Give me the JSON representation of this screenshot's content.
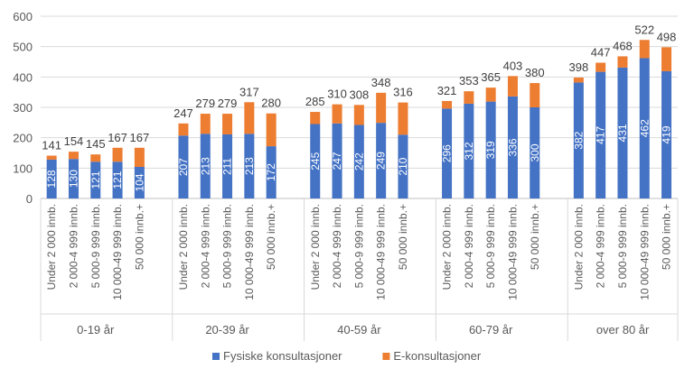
{
  "chart_data": {
    "type": "bar",
    "stacked": true,
    "ylim": [
      0,
      600
    ],
    "yticks": [
      0,
      100,
      200,
      300,
      400,
      500,
      600
    ],
    "grid": true,
    "legend_position": "bottom",
    "groups": [
      "0-19 år",
      "20-39 år",
      "40-59 år",
      "60-79 år",
      "over 80 år"
    ],
    "categories": [
      "Under 2 000 innb.",
      "2 000-4 999 innb.",
      "5 000-9 999 innb.",
      "10 000-49 999 innb.",
      "50 000 innb.+"
    ],
    "series": [
      {
        "name": "Fysiske konsultasjoner",
        "color": "#4472C4",
        "values": [
          [
            128,
            130,
            121,
            121,
            104
          ],
          [
            207,
            213,
            211,
            213,
            172
          ],
          [
            245,
            247,
            242,
            249,
            210
          ],
          [
            296,
            312,
            319,
            336,
            300
          ],
          [
            382,
            417,
            431,
            462,
            419
          ]
        ]
      },
      {
        "name": "E-konsultasjoner",
        "color": "#ED7D31",
        "values": [
          [
            13,
            24,
            24,
            46,
            63
          ],
          [
            40,
            66,
            68,
            104,
            108
          ],
          [
            40,
            63,
            66,
            99,
            106
          ],
          [
            25,
            41,
            46,
            67,
            80
          ],
          [
            16,
            30,
            37,
            60,
            79
          ]
        ]
      }
    ],
    "totals": [
      [
        141,
        154,
        145,
        167,
        167
      ],
      [
        247,
        279,
        279,
        317,
        280
      ],
      [
        285,
        310,
        308,
        348,
        316
      ],
      [
        321,
        353,
        365,
        403,
        380
      ],
      [
        398,
        447,
        468,
        522,
        498
      ]
    ]
  }
}
